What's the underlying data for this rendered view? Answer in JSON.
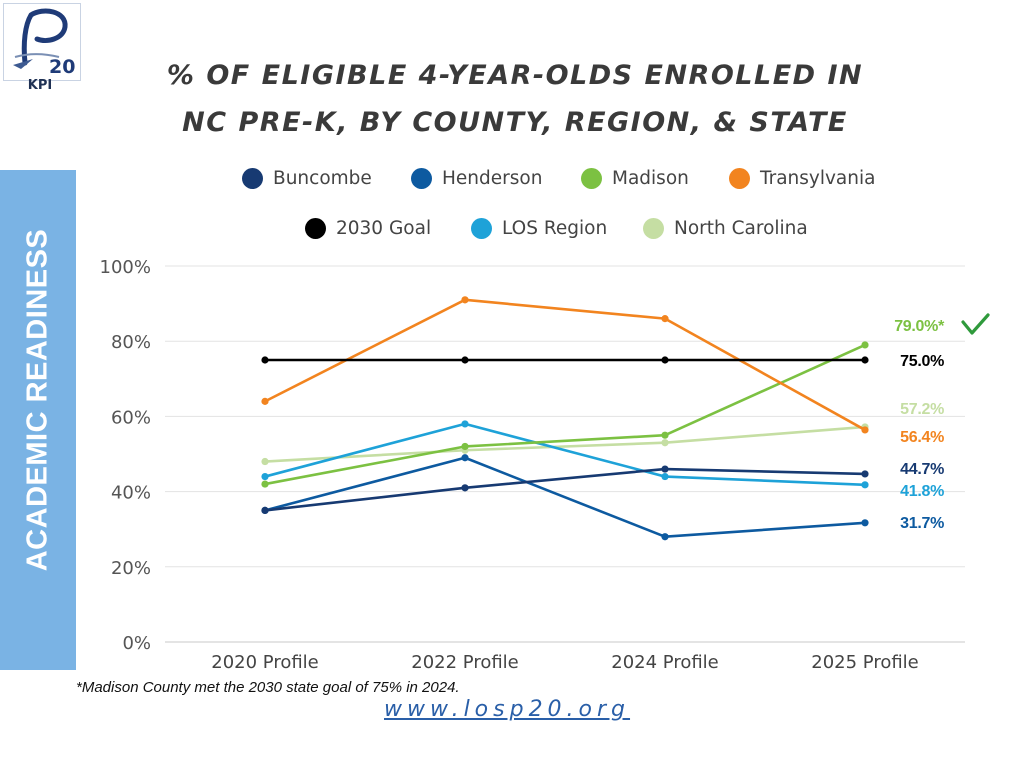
{
  "header": {
    "logo_text": "20",
    "kpi_label": "KPI",
    "title_line1": "% OF ELIGIBLE 4-YEAR-OLDS ENROLLED IN",
    "title_line2": "NC PRE-K, BY COUNTY, REGION, & STATE"
  },
  "sidebar": {
    "label": "ACADEMIC READINESS",
    "color": "#7ab3e4"
  },
  "chart_data": {
    "type": "line",
    "title": "% OF ELIGIBLE 4-YEAR-OLDS ENROLLED IN NC PRE-K, BY COUNTY, REGION, & STATE",
    "xlabel": "",
    "ylabel": "",
    "categories": [
      "2020 Profile",
      "2022 Profile",
      "2024 Profile",
      "2025 Profile"
    ],
    "ylim": [
      0,
      100
    ],
    "yticks": [
      "0%",
      "20%",
      "40%",
      "60%",
      "80%",
      "100%"
    ],
    "grid": true,
    "legend_position": "top",
    "series": [
      {
        "name": "Buncombe",
        "color": "#173a72",
        "values": [
          35,
          41,
          46,
          44.7
        ],
        "end_label": "44.7%"
      },
      {
        "name": "Henderson",
        "color": "#0d5aa0",
        "values": [
          35,
          49,
          28,
          31.7
        ],
        "end_label": "31.7%"
      },
      {
        "name": "Madison",
        "color": "#7cc142",
        "values": [
          42,
          52,
          55,
          79.0
        ],
        "end_label": "79.0%*"
      },
      {
        "name": "Transylvania",
        "color": "#f2841f",
        "values": [
          64,
          91,
          86,
          56.4
        ],
        "end_label": "56.4%"
      },
      {
        "name": "2030 Goal",
        "color": "#000000",
        "values": [
          75,
          75,
          75,
          75.0
        ],
        "end_label": "75.0%"
      },
      {
        "name": "LOS Region",
        "color": "#1ea2d8",
        "values": [
          44,
          58,
          44,
          41.8
        ],
        "end_label": "41.8%"
      },
      {
        "name": "North Carolina",
        "color": "#c5dea3",
        "values": [
          48,
          51,
          53,
          57.2
        ],
        "end_label": "57.2%"
      }
    ]
  },
  "checkmark_color": "#2f9a3c",
  "footnote": "*Madison County met the 2030 state goal of 75% in 2024.",
  "website": "www.losp20.org"
}
